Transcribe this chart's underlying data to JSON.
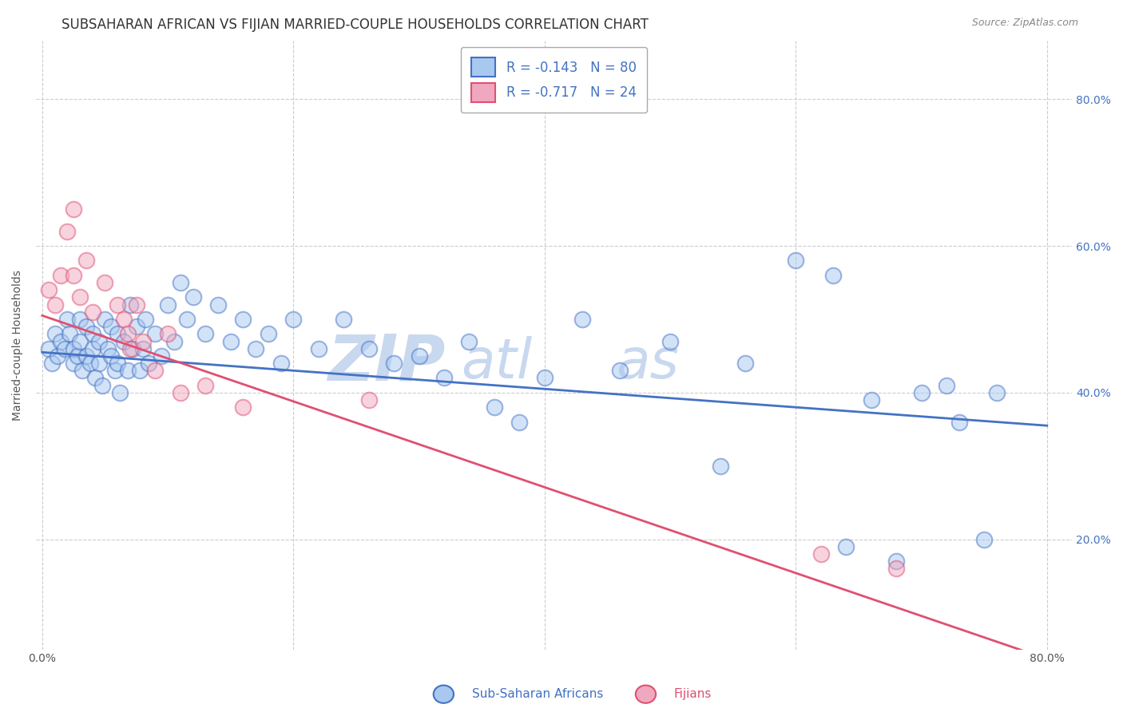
{
  "title": "SUBSAHARAN AFRICAN VS FIJIAN MARRIED-COUPLE HOUSEHOLDS CORRELATION CHART",
  "source_text": "Source: ZipAtlas.com",
  "ylabel": "Married-couple Households",
  "xlim": [
    -0.005,
    0.82
  ],
  "ylim": [
    0.05,
    0.88
  ],
  "x_tick_vals": [
    0.0,
    0.2,
    0.4,
    0.6,
    0.8
  ],
  "x_tick_labels": [
    "0.0%",
    "",
    "",
    "",
    "80.0%"
  ],
  "y_tick_vals": [
    0.2,
    0.4,
    0.6,
    0.8
  ],
  "y_tick_labels": [
    "20.0%",
    "40.0%",
    "60.0%",
    "80.0%"
  ],
  "legend_R1": "R = -0.143",
  "legend_N1": "N = 80",
  "legend_R2": "R = -0.717",
  "legend_N2": "N = 24",
  "color_blue": "#A8C8F0",
  "color_pink": "#F0A8C0",
  "line_blue": "#4472C4",
  "line_pink": "#E05070",
  "watermark_zip": "ZIP",
  "watermark_atlas": "atlas",
  "xlabel_blue": "Sub-Saharan Africans",
  "xlabel_pink": "Fijians",
  "blue_scatter_x": [
    0.005,
    0.008,
    0.01,
    0.012,
    0.015,
    0.018,
    0.02,
    0.022,
    0.025,
    0.025,
    0.028,
    0.03,
    0.03,
    0.032,
    0.035,
    0.035,
    0.038,
    0.04,
    0.04,
    0.042,
    0.045,
    0.045,
    0.048,
    0.05,
    0.052,
    0.055,
    0.055,
    0.058,
    0.06,
    0.06,
    0.062,
    0.065,
    0.068,
    0.07,
    0.072,
    0.075,
    0.078,
    0.08,
    0.082,
    0.085,
    0.09,
    0.095,
    0.1,
    0.105,
    0.11,
    0.115,
    0.12,
    0.13,
    0.14,
    0.15,
    0.16,
    0.17,
    0.18,
    0.19,
    0.2,
    0.22,
    0.24,
    0.26,
    0.28,
    0.3,
    0.32,
    0.34,
    0.36,
    0.38,
    0.4,
    0.43,
    0.46,
    0.5,
    0.54,
    0.56,
    0.6,
    0.63,
    0.66,
    0.7,
    0.73,
    0.76,
    0.64,
    0.68,
    0.72,
    0.75
  ],
  "blue_scatter_y": [
    0.46,
    0.44,
    0.48,
    0.45,
    0.47,
    0.46,
    0.5,
    0.48,
    0.44,
    0.46,
    0.45,
    0.5,
    0.47,
    0.43,
    0.49,
    0.45,
    0.44,
    0.48,
    0.46,
    0.42,
    0.47,
    0.44,
    0.41,
    0.5,
    0.46,
    0.49,
    0.45,
    0.43,
    0.48,
    0.44,
    0.4,
    0.47,
    0.43,
    0.52,
    0.46,
    0.49,
    0.43,
    0.46,
    0.5,
    0.44,
    0.48,
    0.45,
    0.52,
    0.47,
    0.55,
    0.5,
    0.53,
    0.48,
    0.52,
    0.47,
    0.5,
    0.46,
    0.48,
    0.44,
    0.5,
    0.46,
    0.5,
    0.46,
    0.44,
    0.45,
    0.42,
    0.47,
    0.38,
    0.36,
    0.42,
    0.5,
    0.43,
    0.47,
    0.3,
    0.44,
    0.58,
    0.56,
    0.39,
    0.4,
    0.36,
    0.4,
    0.19,
    0.17,
    0.41,
    0.2
  ],
  "pink_scatter_x": [
    0.005,
    0.01,
    0.015,
    0.02,
    0.025,
    0.025,
    0.03,
    0.035,
    0.04,
    0.05,
    0.06,
    0.065,
    0.068,
    0.07,
    0.075,
    0.08,
    0.09,
    0.1,
    0.11,
    0.13,
    0.16,
    0.26,
    0.62,
    0.68
  ],
  "pink_scatter_y": [
    0.54,
    0.52,
    0.56,
    0.62,
    0.65,
    0.56,
    0.53,
    0.58,
    0.51,
    0.55,
    0.52,
    0.5,
    0.48,
    0.46,
    0.52,
    0.47,
    0.43,
    0.48,
    0.4,
    0.41,
    0.38,
    0.39,
    0.18,
    0.16
  ],
  "blue_line_x": [
    0.0,
    0.8
  ],
  "blue_line_y": [
    0.455,
    0.355
  ],
  "pink_line_x": [
    0.0,
    0.795
  ],
  "pink_line_y": [
    0.505,
    0.04
  ],
  "grid_color": "#CCCCCC",
  "grid_linestyle": "--",
  "background_color": "#FFFFFF",
  "title_fontsize": 12,
  "label_fontsize": 10,
  "tick_fontsize": 10,
  "watermark_color": "#C8D8EE",
  "watermark_fontsize_zip": 58,
  "watermark_fontsize_atlas": 50,
  "scatter_size": 200,
  "scatter_alpha": 0.5,
  "scatter_linewidth": 1.5
}
